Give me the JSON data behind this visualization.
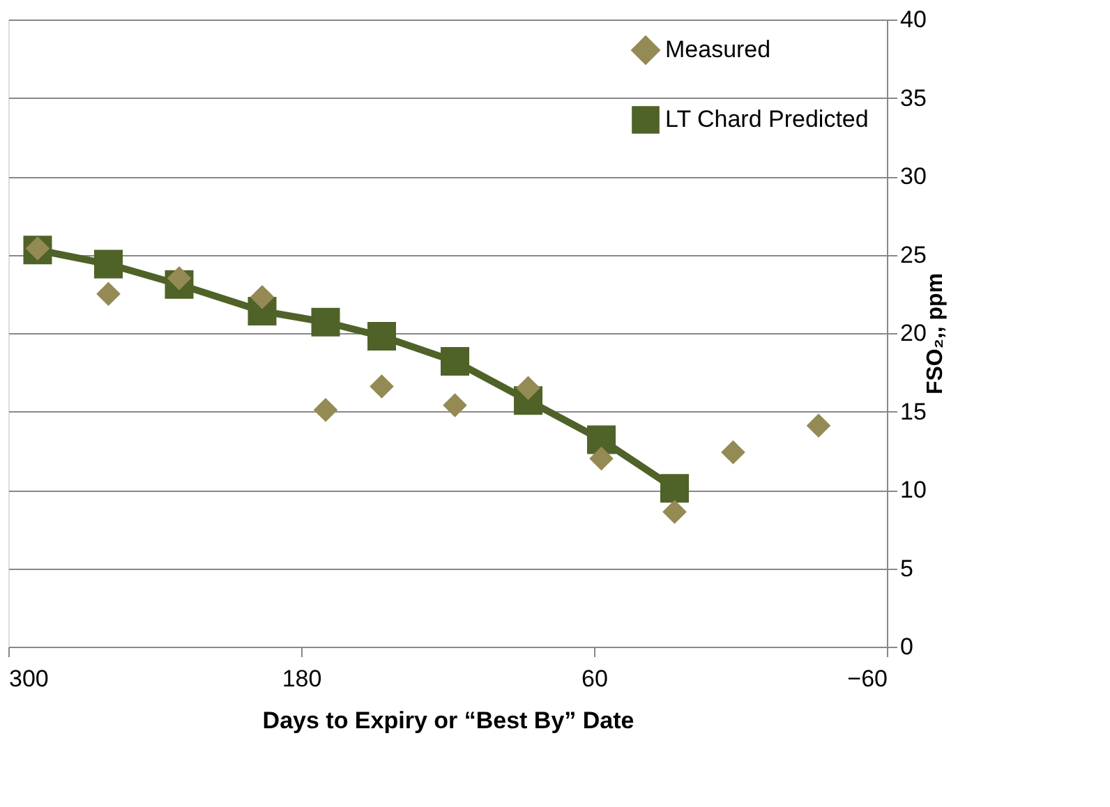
{
  "chart_data": {
    "type": "scatter",
    "xlabel": "Days to Expiry or “Best By” Date",
    "ylabel": "FSO₂,, ppm",
    "xlim": [
      300,
      -60
    ],
    "xticks": [
      300,
      180,
      60,
      -60
    ],
    "ylim": [
      0,
      40
    ],
    "yticks": [
      0,
      5,
      10,
      15,
      20,
      25,
      30,
      35,
      40
    ],
    "grid": "y",
    "legend": "top right",
    "series": [
      {
        "name": "Measured",
        "marker": "diamond",
        "color": "#948a54",
        "x": [
          288,
          259,
          230,
          196,
          170,
          147,
          117,
          87,
          57,
          27,
          3,
          -32
        ],
        "values": [
          25.4,
          22.5,
          23.5,
          22.3,
          15.1,
          16.6,
          15.4,
          16.5,
          12.0,
          8.6,
          12.4,
          14.1
        ]
      },
      {
        "name": "LT Chard Predicted",
        "type": "line",
        "marker": "square",
        "line_style": "solid",
        "color": "#4f6228",
        "x": [
          288,
          259,
          230,
          196,
          170,
          147,
          117,
          87,
          57,
          27
        ],
        "values": [
          25.3,
          24.4,
          23.1,
          21.4,
          20.7,
          19.8,
          18.2,
          15.7,
          13.2,
          10.1
        ]
      }
    ]
  }
}
